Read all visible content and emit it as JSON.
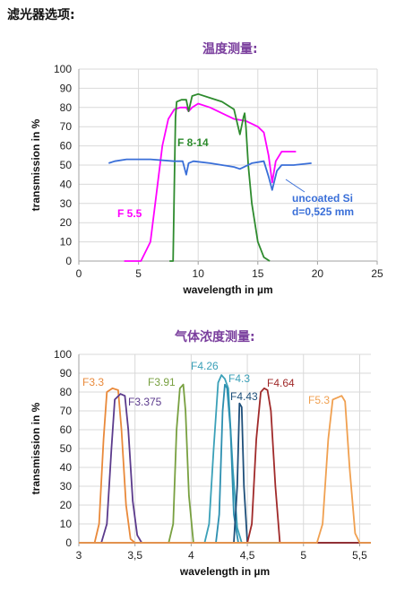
{
  "page": {
    "heading": "滤光器选项:",
    "sections": [
      {
        "subtitle": "温度测量:"
      },
      {
        "subtitle": "气体浓度测量:"
      }
    ]
  },
  "chart_data": [
    {
      "type": "line",
      "title": "温度测量:",
      "xlabel": "wavelength in µm",
      "ylabel": "transmission in %",
      "xlim": [
        0,
        25
      ],
      "ylim": [
        0,
        100
      ],
      "xticks": [
        0,
        5,
        10,
        15,
        20,
        25
      ],
      "yticks": [
        0,
        10,
        20,
        30,
        40,
        50,
        60,
        70,
        80,
        90,
        100
      ],
      "grid": true,
      "series": [
        {
          "name": "F 5.5",
          "color": "#ff00ff",
          "x": [
            3.8,
            5.2,
            6.0,
            6.5,
            7.0,
            7.5,
            8.0,
            8.5,
            9.0,
            9.2,
            9.5,
            10.0,
            11.0,
            12.0,
            13.0,
            14.0,
            15.0,
            15.5,
            15.9,
            16.2,
            16.5,
            17.0,
            17.5,
            18.2
          ],
          "y": [
            0,
            0,
            10,
            35,
            60,
            74,
            79,
            80,
            80,
            78,
            80,
            82,
            80,
            77,
            74,
            73,
            70,
            67,
            55,
            41,
            52,
            57,
            57,
            57
          ]
        },
        {
          "name": "F 8-14",
          "color": "#2e8b2e",
          "x": [
            7.6,
            7.9,
            8.0,
            8.1,
            8.2,
            8.6,
            9.0,
            9.2,
            9.5,
            10.0,
            11.0,
            12.0,
            13.0,
            13.5,
            13.8,
            13.9,
            14.0,
            14.2,
            14.5,
            15.0,
            15.5,
            16.0
          ],
          "y": [
            0,
            0,
            40,
            75,
            83,
            84,
            84,
            78,
            86,
            87,
            85,
            83,
            79,
            66,
            75,
            77,
            70,
            50,
            30,
            10,
            2,
            0
          ]
        },
        {
          "name": "uncoated Si d=0,525 mm",
          "color": "#3a6fd8",
          "x": [
            2.5,
            3.0,
            4.0,
            6.0,
            8.0,
            8.7,
            9.0,
            9.2,
            9.6,
            11.0,
            12.0,
            13.0,
            13.5,
            14.5,
            15.5,
            15.9,
            16.2,
            16.6,
            17.0,
            18.0,
            19.5
          ],
          "y": [
            51,
            52,
            53,
            53,
            52,
            52,
            45,
            51,
            52,
            51,
            50,
            49,
            48,
            51,
            52,
            44,
            37,
            47,
            50,
            50,
            51
          ]
        }
      ],
      "annotations": [
        "F 8-14",
        "F 5.5",
        "uncoated Si",
        "d=0,525 mm"
      ]
    },
    {
      "type": "line",
      "title": "气体浓度测量:",
      "xlabel": "wavelength in µm",
      "ylabel": "transmission in %",
      "xlim": [
        3,
        5.6
      ],
      "ylim": [
        0,
        100
      ],
      "xticks": [
        "3",
        "3,5",
        "4",
        "4,5",
        "5",
        "5,5"
      ],
      "yticks": [
        0,
        10,
        20,
        30,
        40,
        50,
        60,
        70,
        80,
        90,
        100
      ],
      "grid": true,
      "series": [
        {
          "name": "F3.3",
          "color": "#e9893a",
          "x": [
            3.0,
            3.14,
            3.18,
            3.22,
            3.25,
            3.3,
            3.35,
            3.38,
            3.42,
            3.46,
            3.5,
            5.6
          ],
          "y": [
            0,
            0,
            10,
            55,
            80,
            82,
            81,
            60,
            20,
            2,
            0,
            0
          ]
        },
        {
          "name": "F3.375",
          "color": "#5b3a8c",
          "x": [
            3.0,
            3.2,
            3.25,
            3.29,
            3.32,
            3.37,
            3.41,
            3.44,
            3.48,
            3.52,
            3.56,
            5.6
          ],
          "y": [
            0,
            0,
            10,
            50,
            76,
            79,
            78,
            60,
            22,
            4,
            0,
            0
          ]
        },
        {
          "name": "F3.91",
          "color": "#78a040",
          "x": [
            3.0,
            3.8,
            3.84,
            3.87,
            3.9,
            3.93,
            3.95,
            3.98,
            4.02,
            5.6
          ],
          "y": [
            0,
            0,
            10,
            60,
            82,
            84,
            70,
            25,
            0,
            0
          ]
        },
        {
          "name": "F4.26",
          "color": "#3aa0b8",
          "x": [
            3.0,
            4.12,
            4.16,
            4.2,
            4.24,
            4.27,
            4.3,
            4.33,
            4.37,
            4.41,
            4.45,
            5.6
          ],
          "y": [
            0,
            0,
            10,
            50,
            85,
            89,
            87,
            82,
            40,
            8,
            0,
            0
          ]
        },
        {
          "name": "F4.3",
          "color": "#2c8fb0",
          "x": [
            3.0,
            4.22,
            4.25,
            4.28,
            4.3,
            4.32,
            4.35,
            4.38,
            4.42,
            5.6
          ],
          "y": [
            0,
            0,
            15,
            70,
            84,
            82,
            60,
            15,
            0,
            0
          ]
        },
        {
          "name": "F4.43",
          "color": "#1e4f7a",
          "x": [
            3.0,
            4.38,
            4.41,
            4.43,
            4.45,
            4.47,
            4.5,
            5.6
          ],
          "y": [
            0,
            0,
            30,
            74,
            72,
            30,
            0,
            0
          ]
        },
        {
          "name": "F4.64",
          "color": "#a02a2a",
          "x": [
            3.0,
            4.5,
            4.54,
            4.58,
            4.62,
            4.65,
            4.68,
            4.71,
            4.75,
            4.79,
            5.6
          ],
          "y": [
            0,
            0,
            10,
            55,
            80,
            82,
            81,
            70,
            30,
            0,
            0
          ]
        },
        {
          "name": "F5.3",
          "color": "#f0a050",
          "x": [
            3.0,
            5.12,
            5.17,
            5.22,
            5.26,
            5.3,
            5.34,
            5.37,
            5.41,
            5.46,
            5.5,
            5.6
          ],
          "y": [
            0,
            0,
            10,
            55,
            76,
            77,
            78,
            75,
            40,
            5,
            0,
            0
          ]
        }
      ]
    }
  ]
}
